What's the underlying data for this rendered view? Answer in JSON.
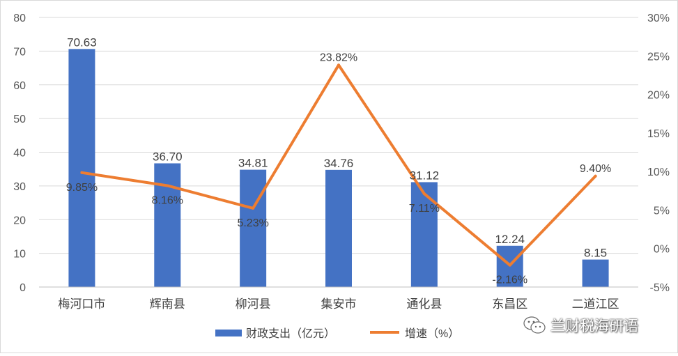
{
  "chart_data": {
    "type": "bar+line",
    "categories": [
      "梅河口市",
      "辉南县",
      "柳河县",
      "集安市",
      "通化县",
      "东昌区",
      "二道江区"
    ],
    "series": [
      {
        "name": "财政支出（亿元）",
        "type": "bar",
        "axis": "left",
        "color": "#4472C4",
        "values": [
          70.63,
          36.7,
          34.81,
          34.76,
          31.12,
          12.24,
          8.15
        ],
        "labels": [
          "70.63",
          "36.70",
          "34.81",
          "34.76",
          "31.12",
          "12.24",
          "8.15"
        ]
      },
      {
        "name": "增速（%）",
        "type": "line",
        "axis": "right",
        "color": "#ED7D31",
        "values": [
          9.85,
          8.16,
          5.23,
          23.82,
          7.11,
          -2.16,
          9.4
        ],
        "labels": [
          "9.85%",
          "8.16%",
          "5.23%",
          "23.82%",
          "7.11%",
          "-2.16%",
          "9.40%"
        ]
      }
    ],
    "y_left": {
      "min": 0,
      "max": 80,
      "ticks": [
        "0",
        "10",
        "20",
        "30",
        "40",
        "50",
        "60",
        "70",
        "80"
      ]
    },
    "y_right": {
      "min": -5,
      "max": 30,
      "ticks": [
        "-5%",
        "0%",
        "5%",
        "10%",
        "15%",
        "20%",
        "25%",
        "30%"
      ]
    },
    "grid": true,
    "legend_position": "bottom"
  },
  "legend": {
    "bar_label": "财政支出（亿元）",
    "line_label": "增速（%）"
  },
  "watermark": {
    "icon": "wechat-icon",
    "text": "兰财税海研语"
  }
}
